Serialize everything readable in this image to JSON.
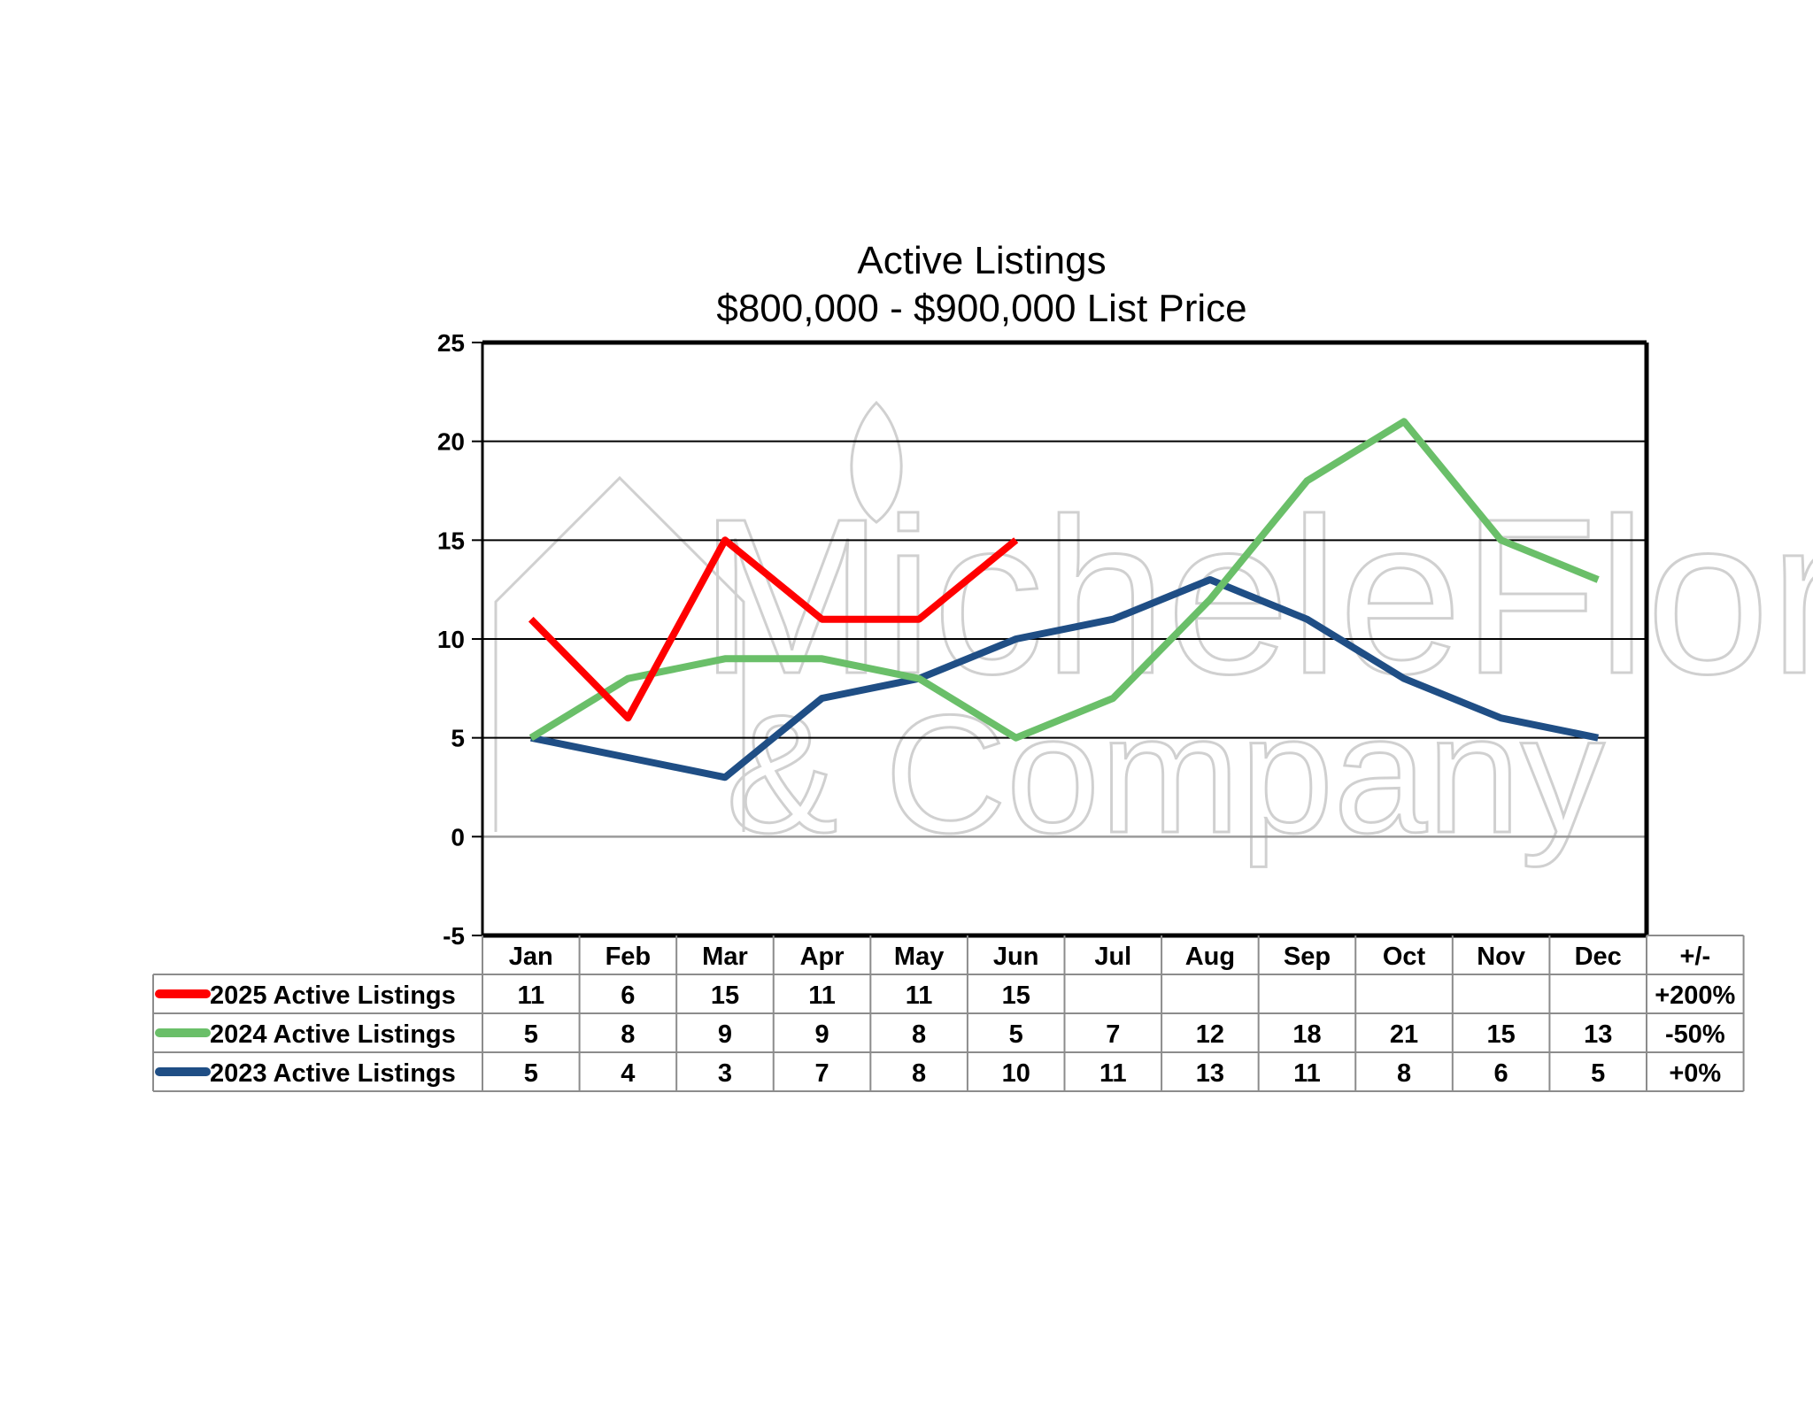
{
  "chart_data": {
    "type": "line",
    "title": "Active Listings",
    "subtitle": "$800,000 - $900,000 List Price",
    "categories": [
      "Jan",
      "Feb",
      "Mar",
      "Apr",
      "May",
      "Jun",
      "Jul",
      "Aug",
      "Sep",
      "Oct",
      "Nov",
      "Dec"
    ],
    "change_header": "+/-",
    "ylim": [
      -5,
      25
    ],
    "yticks": [
      -5,
      0,
      5,
      10,
      15,
      20,
      25
    ],
    "grid": true,
    "legend": "data-table-below",
    "watermark": {
      "line1": "MicheleFlory",
      "line2": "& Company"
    },
    "series": [
      {
        "name": "2025 Active Listings",
        "color": "#ff0000",
        "values": [
          11,
          6,
          15,
          11,
          11,
          15,
          null,
          null,
          null,
          null,
          null,
          null
        ],
        "change": "+200%"
      },
      {
        "name": "2024 Active Listings",
        "color": "#6abf69",
        "values": [
          5,
          8,
          9,
          9,
          8,
          5,
          7,
          12,
          18,
          21,
          15,
          13
        ],
        "change": "-50%"
      },
      {
        "name": "2023 Active Listings",
        "color": "#1f4e85",
        "values": [
          5,
          4,
          3,
          7,
          8,
          10,
          11,
          13,
          11,
          8,
          6,
          5
        ],
        "change": "+0%"
      }
    ]
  }
}
